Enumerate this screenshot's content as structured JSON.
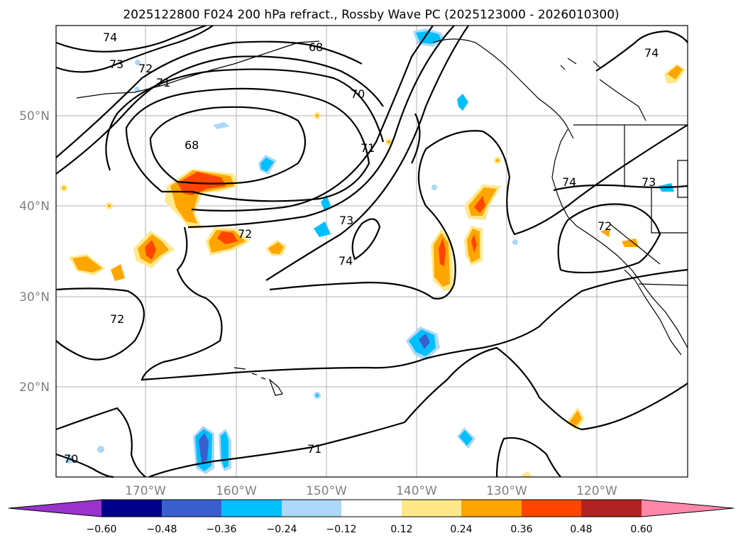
{
  "title": "2025122800 F024 200 hPa refract., Rossby Wave PC (2025123000 - 2026010300)",
  "lat_labels": [
    "50°N",
    "40°N",
    "30°N",
    "20°N"
  ],
  "lon_labels": [
    "170°W",
    "160°W",
    "150°W",
    "140°W",
    "130°W",
    "120°W"
  ],
  "contour_labels": [
    "74",
    "73",
    "72",
    "71",
    "68",
    "68",
    "70",
    "71",
    "73",
    "74",
    "72",
    "72",
    "71",
    "70",
    "74",
    "74",
    "73",
    "72"
  ],
  "colorbar": {
    "ticks": [
      "−0.60",
      "−0.48",
      "−0.36",
      "−0.24",
      "−0.12",
      "0.12",
      "0.24",
      "0.36",
      "0.48",
      "0.60"
    ],
    "colors": [
      "#9933cc",
      "#00008b",
      "#3a5fcd",
      "#00bfff",
      "#add8f7",
      "#ffffff",
      "#ffe88a",
      "#ffa500",
      "#ff4500",
      "#b22222",
      "#ff88aa"
    ]
  }
}
